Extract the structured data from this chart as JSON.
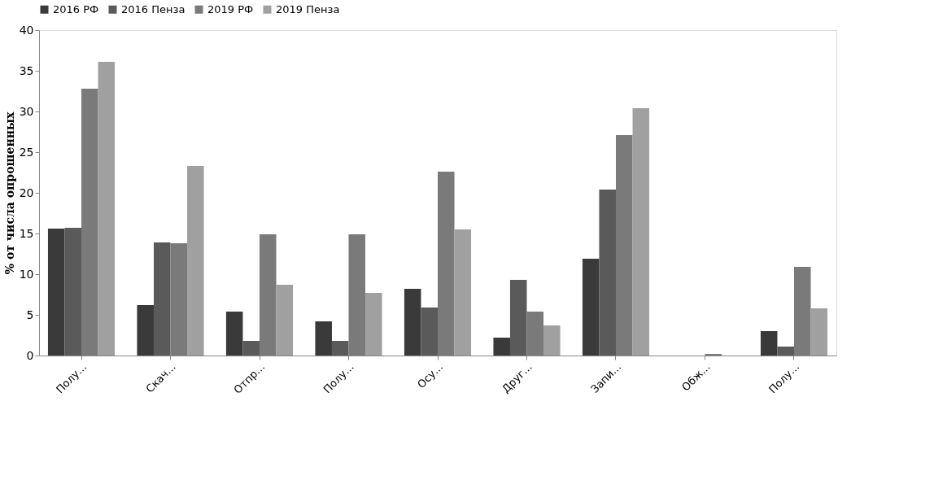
{
  "chart_data": {
    "type": "bar",
    "ylabel": "% от числа опрошенных",
    "categories": [
      "Полу...",
      "Скач...",
      "Отпр...",
      "Полу...",
      "Осу...",
      "Друг...",
      "Запи...",
      "Обж...",
      "Полу..."
    ],
    "series": [
      {
        "name": "2016 РФ",
        "color": "#3a3a3a",
        "values": [
          15.6,
          6.2,
          5.4,
          4.2,
          8.2,
          2.2,
          11.9,
          0,
          3.0
        ]
      },
      {
        "name": "2016 Пенза",
        "color": "#5a5a5a",
        "values": [
          15.7,
          13.9,
          1.8,
          1.8,
          5.9,
          9.3,
          20.4,
          0,
          1.1
        ]
      },
      {
        "name": "2019 РФ",
        "color": "#7a7a7a",
        "values": [
          32.8,
          13.8,
          14.9,
          14.9,
          22.6,
          5.4,
          27.1,
          0.2,
          10.9
        ]
      },
      {
        "name": "2019 Пенза",
        "color": "#a0a0a0",
        "values": [
          36.1,
          23.3,
          8.7,
          7.7,
          15.5,
          3.7,
          30.4,
          0,
          5.8
        ]
      }
    ],
    "ylim": [
      0,
      40
    ],
    "yticks": [
      0,
      5,
      10,
      15,
      20,
      25,
      30,
      35,
      40
    ],
    "grid": false,
    "legend": "top"
  }
}
